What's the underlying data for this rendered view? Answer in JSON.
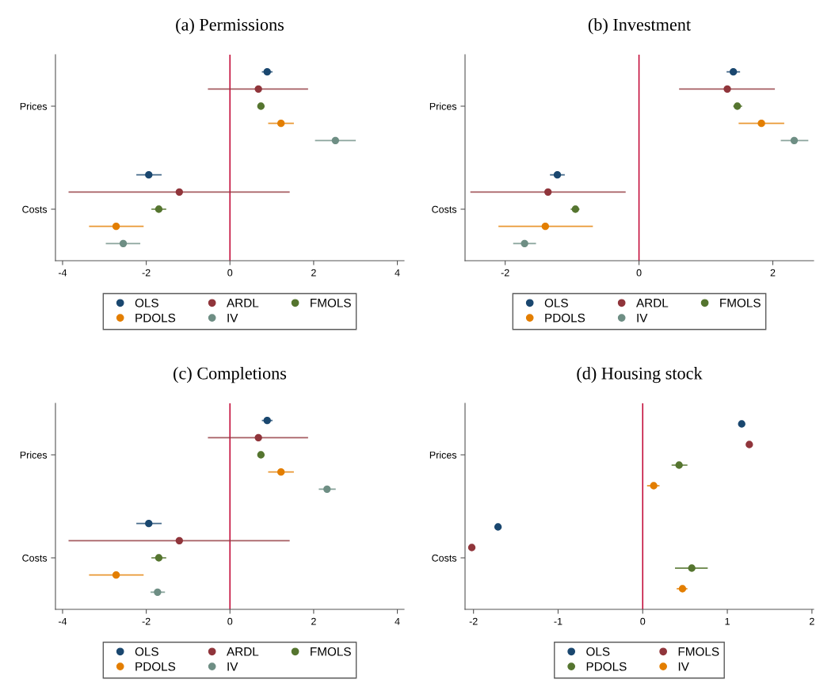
{
  "chart_data": [
    {
      "type": "scatter",
      "title": "(a) Permissions",
      "orientation": "horizontal",
      "categories": [
        "Prices",
        "Costs"
      ],
      "xlim": [
        -4.17,
        4.16
      ],
      "xticks": [
        {
          "value": -4,
          "label": "-4"
        },
        {
          "value": -2,
          "label": "-2"
        },
        0,
        2,
        4
      ],
      "marker": "circle",
      "grid": false,
      "legend": "bottom",
      "ref_lines": [
        {
          "axis": "x",
          "value": 0,
          "color": "#c10534"
        }
      ],
      "series": [
        {
          "name": "OLS",
          "color": "#1a476f",
          "values": [
            0.89,
            -1.94
          ],
          "errors": [
            [
              0.78,
              1.0
            ],
            [
              -2.22,
              -1.65
            ]
          ]
        },
        {
          "name": "ARDL",
          "color": "#90353b",
          "values": [
            0.68,
            -1.21
          ],
          "errors": [
            [
              -0.51,
              1.85
            ],
            [
              -3.84,
              1.41
            ]
          ]
        },
        {
          "name": "FMOLS",
          "color": "#55752f",
          "values": [
            0.74,
            -1.7
          ],
          "errors": [
            [
              0.68,
              0.8
            ],
            [
              -1.86,
              -1.54
            ]
          ]
        },
        {
          "name": "PDOLS",
          "color": "#e37e00",
          "values": [
            1.22,
            -2.72
          ],
          "errors": [
            [
              0.93,
              1.51
            ],
            [
              -3.35,
              -2.08
            ]
          ]
        },
        {
          "name": "IV",
          "color": "#6e8e84",
          "values": [
            2.52,
            -2.55
          ],
          "errors": [
            [
              2.05,
              2.99
            ],
            [
              -2.95,
              -2.16
            ]
          ]
        }
      ]
    },
    {
      "type": "scatter",
      "title": "(b) Investment",
      "orientation": "horizontal",
      "categories": [
        "Prices",
        "Costs"
      ],
      "xlim": [
        -2.6,
        2.61
      ],
      "xticks": [
        {
          "value": -2,
          "label": "-2"
        },
        0,
        2
      ],
      "marker": "circle",
      "grid": false,
      "legend": "bottom",
      "ref_lines": [
        {
          "axis": "x",
          "value": 0,
          "color": "#c10534"
        }
      ],
      "series": [
        {
          "name": "OLS",
          "color": "#1a476f",
          "values": [
            1.41,
            -1.22
          ],
          "errors": [
            [
              1.32,
              1.5
            ],
            [
              -1.32,
              -1.12
            ]
          ]
        },
        {
          "name": "ARDL",
          "color": "#90353b",
          "values": [
            1.32,
            -1.36
          ],
          "errors": [
            [
              0.61,
              2.02
            ],
            [
              -2.51,
              -0.21
            ]
          ]
        },
        {
          "name": "FMOLS",
          "color": "#55752f",
          "values": [
            1.47,
            -0.95
          ],
          "errors": [
            [
              1.42,
              1.53
            ],
            [
              -1.01,
              -0.9
            ]
          ]
        },
        {
          "name": "PDOLS",
          "color": "#e37e00",
          "values": [
            1.83,
            -1.4
          ],
          "errors": [
            [
              1.5,
              2.16
            ],
            [
              -2.09,
              -0.7
            ]
          ]
        },
        {
          "name": "IV",
          "color": "#6e8e84",
          "values": [
            2.32,
            -1.71
          ],
          "errors": [
            [
              2.13,
              2.52
            ],
            [
              -1.87,
              -1.55
            ]
          ]
        }
      ]
    },
    {
      "type": "scatter",
      "title": "(c) Completions",
      "orientation": "horizontal",
      "categories": [
        "Prices",
        "Costs"
      ],
      "xlim": [
        -4.17,
        4.16
      ],
      "xticks": [
        {
          "value": -4,
          "label": "-4"
        },
        {
          "value": -2,
          "label": "-2"
        },
        0,
        2,
        4
      ],
      "marker": "circle",
      "grid": false,
      "legend": "bottom",
      "ref_lines": [
        {
          "axis": "x",
          "value": 0,
          "color": "#c10534"
        }
      ],
      "series": [
        {
          "name": "OLS",
          "color": "#1a476f",
          "values": [
            0.89,
            -1.94
          ],
          "errors": [
            [
              0.78,
              1.0
            ],
            [
              -2.22,
              -1.65
            ]
          ]
        },
        {
          "name": "ARDL",
          "color": "#90353b",
          "values": [
            0.68,
            -1.21
          ],
          "errors": [
            [
              -0.51,
              1.85
            ],
            [
              -3.84,
              1.41
            ]
          ]
        },
        {
          "name": "FMOLS",
          "color": "#55752f",
          "values": [
            0.74,
            -1.7
          ],
          "errors": [
            [
              0.68,
              0.8
            ],
            [
              -1.86,
              -1.54
            ]
          ]
        },
        {
          "name": "PDOLS",
          "color": "#e37e00",
          "values": [
            1.22,
            -2.72
          ],
          "errors": [
            [
              0.93,
              1.51
            ],
            [
              -3.35,
              -2.08
            ]
          ]
        },
        {
          "name": "IV",
          "color": "#6e8e84",
          "values": [
            2.32,
            -1.73
          ],
          "errors": [
            [
              2.14,
              2.51
            ],
            [
              -1.88,
              -1.57
            ]
          ]
        }
      ]
    },
    {
      "type": "scatter",
      "title": "(d) Housing stock",
      "orientation": "horizontal",
      "categories": [
        "Prices",
        "Costs"
      ],
      "xlim": [
        -2.1,
        2.02
      ],
      "xticks": [
        {
          "value": -2,
          "label": "-2"
        },
        {
          "value": -1,
          "label": "-1"
        },
        0,
        1,
        2
      ],
      "marker": "circle",
      "grid": false,
      "legend": "bottom",
      "ref_lines": [
        {
          "axis": "x",
          "value": 0,
          "color": "#c10534"
        }
      ],
      "series": [
        {
          "name": "OLS",
          "color": "#1a476f",
          "values": [
            1.17,
            -1.71
          ]
        },
        {
          "name": "FMOLS",
          "color": "#90353b",
          "values": [
            1.26,
            -2.02
          ]
        },
        {
          "name": "PDOLS",
          "color": "#55752f",
          "values": [
            0.43,
            0.58
          ],
          "errors": [
            [
              0.35,
              0.52
            ],
            [
              0.39,
              0.76
            ]
          ]
        },
        {
          "name": "IV",
          "color": "#e37e00",
          "values": [
            0.13,
            0.47
          ],
          "errors": [
            [
              0.06,
              0.19
            ],
            [
              0.41,
              0.52
            ]
          ]
        }
      ]
    }
  ]
}
